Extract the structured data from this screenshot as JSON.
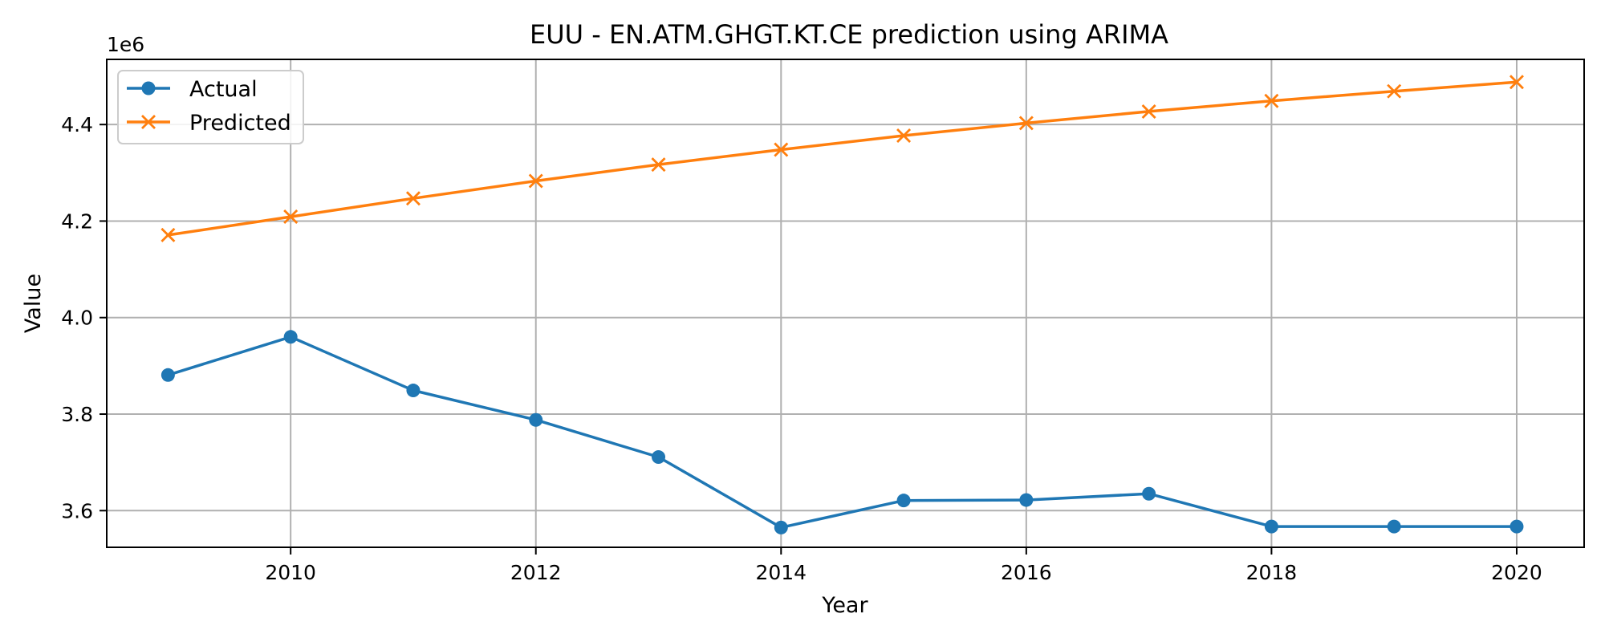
{
  "chart_data": {
    "type": "line",
    "title": "EUU - EN.ATM.GHGT.KT.CE prediction using ARIMA",
    "xlabel": "Year",
    "ylabel": "Value",
    "y_offset_label": "1e6",
    "xlim": [
      2008.5,
      2020.55
    ],
    "ylim": [
      3.524,
      4.535
    ],
    "x_ticks": [
      2010,
      2012,
      2014,
      2016,
      2018,
      2020
    ],
    "y_ticks": [
      3.6,
      3.8,
      4.0,
      4.2,
      4.4
    ],
    "x_tick_labels": [
      "2010",
      "2012",
      "2014",
      "2016",
      "2018",
      "2020"
    ],
    "y_tick_labels": [
      "3.6",
      "3.8",
      "4.0",
      "4.2",
      "4.4"
    ],
    "grid": true,
    "legend_position": "top-left",
    "x": [
      2009,
      2010,
      2011,
      2012,
      2013,
      2014,
      2015,
      2016,
      2017,
      2018,
      2019,
      2020
    ],
    "series": [
      {
        "name": "Actual",
        "color": "#1f77b4",
        "marker": "circle",
        "values": [
          3.881,
          3.96,
          3.849,
          3.788,
          3.711,
          3.565,
          3.621,
          3.622,
          3.635,
          3.567,
          3.567,
          3.567
        ]
      },
      {
        "name": "Predicted",
        "color": "#ff7f0e",
        "marker": "x",
        "values": [
          4.171,
          4.209,
          4.247,
          4.283,
          4.317,
          4.348,
          4.377,
          4.403,
          4.427,
          4.449,
          4.469,
          4.488
        ]
      }
    ]
  }
}
